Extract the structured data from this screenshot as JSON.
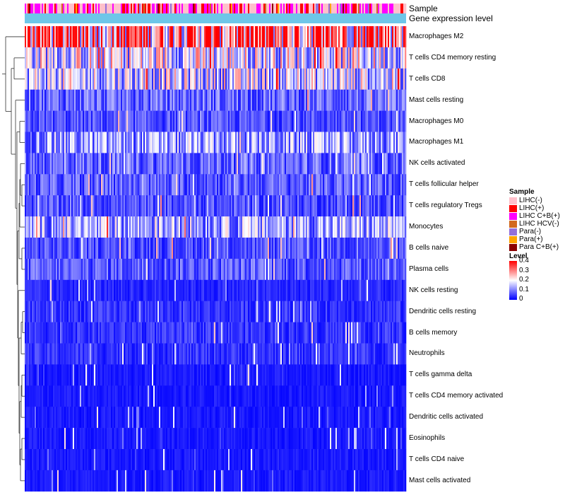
{
  "chart_data": {
    "type": "heatmap",
    "title": "",
    "annotation_tracks": [
      {
        "name": "Sample",
        "label": "Sample"
      },
      {
        "name": "Gene expression level",
        "label": "Gene expression level"
      }
    ],
    "rows": [
      "Macrophages M2",
      "T cells CD4 memory resting",
      "T cells CD8",
      "Mast cells resting",
      "Macrophages M0",
      "Macrophages M1",
      "NK cells activated",
      "T cells follicular helper",
      "T cells regulatory  Tregs",
      "Monocytes",
      "B cells naive",
      "Plasma cells",
      "NK cells resting",
      "Dendritic cells resting",
      "B cells memory",
      "Neutrophils",
      "T cells gamma delta",
      "T cells CD4 memory activated",
      "Dendritic cells activated",
      "Eosinophils",
      "T cells CD4 naive",
      "Mast cells activated"
    ],
    "row_mean_levels": [
      0.32,
      0.18,
      0.16,
      0.08,
      0.06,
      0.12,
      0.08,
      0.07,
      0.06,
      0.13,
      0.06,
      0.07,
      0.03,
      0.04,
      0.04,
      0.04,
      0.02,
      0.02,
      0.02,
      0.02,
      0.02,
      0.02
    ],
    "sample_legend": {
      "title": "Sample",
      "items": [
        {
          "label": "LIHC(-)",
          "color": "#ffc0cb"
        },
        {
          "label": "LIHC(+)",
          "color": "#ff0000"
        },
        {
          "label": "LIHC C+B(+)",
          "color": "#ff00ff"
        },
        {
          "label": "LIHC HCV(-)",
          "color": "#d2691e"
        },
        {
          "label": "Para(-)",
          "color": "#9370db"
        },
        {
          "label": "Para(+)",
          "color": "#ffa500"
        },
        {
          "label": "Para C+B(+)",
          "color": "#8b0000"
        }
      ]
    },
    "level_legend": {
      "title": "Level",
      "range": [
        0,
        0.4
      ],
      "ticks": [
        "0.4",
        "0.3",
        "0.2",
        "0.1",
        "0"
      ],
      "colors": {
        "low": "#0000ff",
        "mid": "#ffffff",
        "high": "#ff0000"
      }
    },
    "gene_expression_track_color": "#6ec6e8",
    "n_columns": 270
  }
}
